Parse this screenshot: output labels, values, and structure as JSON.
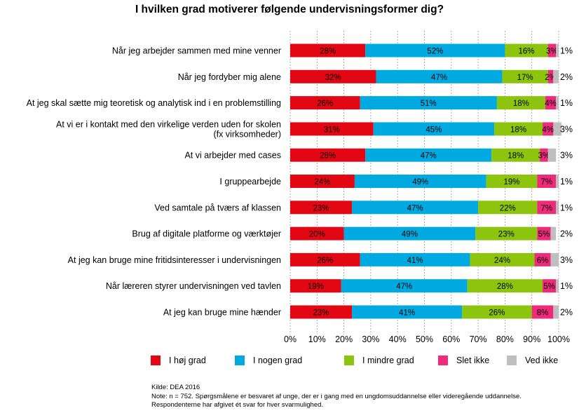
{
  "title": "I hvilken grad motiverer følgende undervisningsformer dig?",
  "chart_data": {
    "type": "bar",
    "orientation": "horizontal-stacked-100",
    "title": "I hvilken grad motiverer følgende undervisningsformer dig?",
    "xlim": [
      0,
      100
    ],
    "x_ticks": [
      "0%",
      "10%",
      "20%",
      "30%",
      "40%",
      "50%",
      "60%",
      "70%",
      "80%",
      "90%",
      "100%"
    ],
    "grid": true,
    "legend_position": "bottom",
    "categories": [
      [
        "Når jeg arbejder sammen med mine venner"
      ],
      [
        "Når jeg fordyber mig alene"
      ],
      [
        "At jeg skal sætte mig teoretisk og analytisk ind i en problemstilling"
      ],
      [
        "At vi er i kontakt med den virkelige verden uden for skolen",
        "(fx virksomheder)"
      ],
      [
        "At vi arbejder med cases"
      ],
      [
        "I gruppearbejde"
      ],
      [
        "Ved samtale på tværs af klassen"
      ],
      [
        "Brug af digitale platforme og værktøjer"
      ],
      [
        "At jeg kan bruge mine fritidsinteresser i undervisningen"
      ],
      [
        "Når læreren styrer undervisningen ved tavlen"
      ],
      [
        "At jeg kan bruge mine hænder"
      ]
    ],
    "series": [
      {
        "name": "I høj grad",
        "color": "#e30613",
        "values": [
          28,
          32,
          26,
          31,
          28,
          24,
          23,
          20,
          26,
          19,
          23
        ]
      },
      {
        "name": "I nogen grad",
        "color": "#00a9e0",
        "values": [
          52,
          47,
          51,
          45,
          47,
          49,
          47,
          49,
          41,
          47,
          41
        ]
      },
      {
        "name": "I mindre grad",
        "color": "#8cc40e",
        "values": [
          16,
          17,
          18,
          18,
          18,
          19,
          22,
          23,
          24,
          28,
          26
        ]
      },
      {
        "name": "Slet ikke",
        "color": "#ee2a7b",
        "values": [
          3,
          2,
          4,
          4,
          3,
          7,
          7,
          5,
          6,
          5,
          8
        ]
      },
      {
        "name": "Ved ikke",
        "color": "#bfbfbf",
        "values": [
          1,
          2,
          1,
          3,
          3,
          1,
          1,
          2,
          3,
          1,
          2
        ]
      }
    ]
  },
  "footer": {
    "source": "Kilde: DEA 2016",
    "note1": "Note: n = 752. Spørgsmålene er besvaret af unge, der er i gang med en ungdomsuddannelse eller videregående uddannelse.",
    "note2": "Respondenterne har afgivet ét svar for hver svarmulighed."
  }
}
